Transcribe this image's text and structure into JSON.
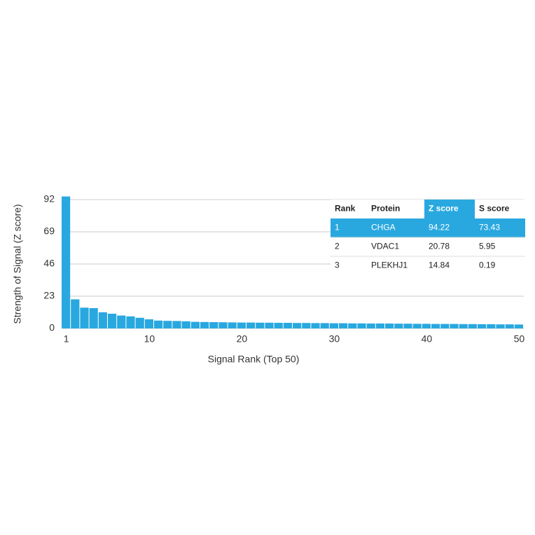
{
  "chart_data": {
    "type": "bar",
    "x_label": "Signal Rank (Top 50)",
    "y_label": "Strength of Signal (Z score)",
    "x": [
      1,
      2,
      3,
      4,
      5,
      6,
      7,
      8,
      9,
      10,
      11,
      12,
      13,
      14,
      15,
      16,
      17,
      18,
      19,
      20,
      21,
      22,
      23,
      24,
      25,
      26,
      27,
      28,
      29,
      30,
      31,
      32,
      33,
      34,
      35,
      36,
      37,
      38,
      39,
      40,
      41,
      42,
      43,
      44,
      45,
      46,
      47,
      48,
      49,
      50
    ],
    "values": [
      94.22,
      20.78,
      14.84,
      14.5,
      11.5,
      10.5,
      9.2,
      8.6,
      7.6,
      6.5,
      5.6,
      5.4,
      5.3,
      5.1,
      4.7,
      4.6,
      4.5,
      4.4,
      4.3,
      4.2,
      4.2,
      4.1,
      4.1,
      4.0,
      4.0,
      3.9,
      3.9,
      3.8,
      3.8,
      3.7,
      3.7,
      3.6,
      3.6,
      3.5,
      3.5,
      3.5,
      3.4,
      3.4,
      3.3,
      3.3,
      3.2,
      3.2,
      3.2,
      3.1,
      3.1,
      3.0,
      3.0,
      2.9,
      2.9,
      2.8
    ],
    "color": "#29a8e0",
    "xlim": [
      0.5,
      50.5
    ],
    "xticks": [
      1,
      10,
      20,
      30,
      40,
      50
    ],
    "ylim": [
      0,
      92
    ],
    "yticks": [
      0,
      23,
      46,
      69,
      92
    ],
    "grid": true
  },
  "table": {
    "header": [
      "Rank",
      "Protein",
      "Z score",
      "S score"
    ],
    "rows": [
      [
        "1",
        "CHGA",
        "94.22",
        "73.43"
      ],
      [
        "2",
        "VDAC1",
        "20.78",
        "5.95"
      ],
      [
        "3",
        "PLEKHJ1",
        "14.84",
        "0.19"
      ]
    ]
  }
}
